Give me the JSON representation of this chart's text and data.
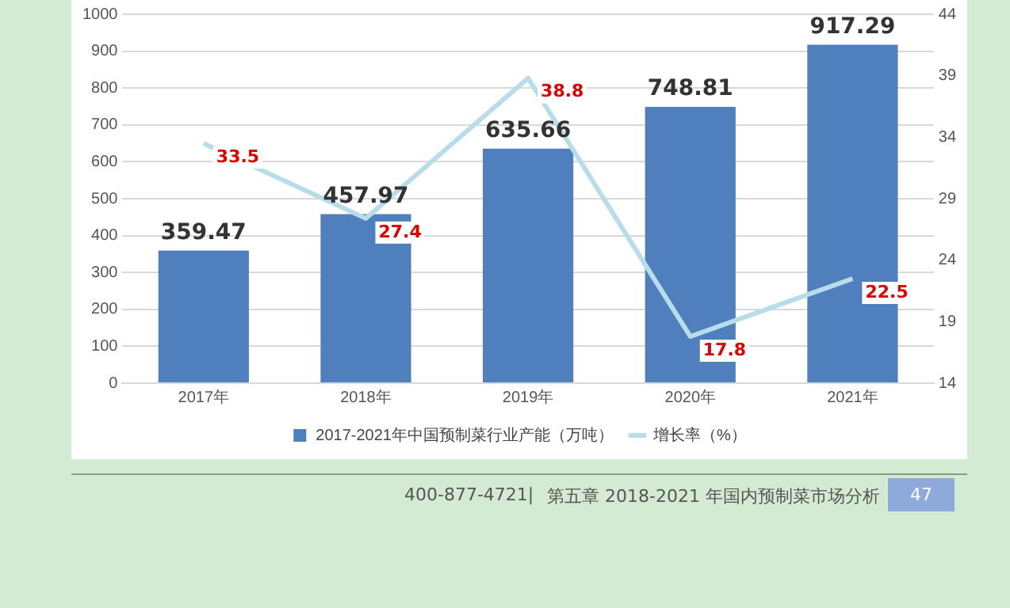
{
  "chart_data": {
    "type": "bar",
    "categories": [
      "2017年",
      "2018年",
      "2019年",
      "2020年",
      "2021年"
    ],
    "series": [
      {
        "name": "2017-2021年中国预制菜行业产能（万吨）",
        "color": "#4f7fbd",
        "values": [
          359.47,
          457.97,
          635.66,
          748.81,
          917.29
        ]
      },
      {
        "name": "增长率（%）",
        "type": "line",
        "axis": "y2",
        "color": "#b7dde8",
        "values": [
          33.5,
          27.4,
          38.8,
          17.8,
          22.5
        ]
      }
    ],
    "ylim": [
      0,
      1000
    ],
    "yticks": [
      0,
      100,
      200,
      300,
      400,
      500,
      600,
      700,
      800,
      900,
      1000
    ],
    "y2lim": [
      14,
      44
    ],
    "y2ticks": [
      14,
      19,
      24,
      29,
      34,
      39,
      44
    ],
    "grid": "y",
    "legend": "bottom",
    "data_labels": true,
    "marker": "none",
    "line_style": "solid",
    "annotations": [
      "400-877-4721|",
      "第五章  2018-2021 年国内预制菜市场分析",
      "47"
    ]
  }
}
